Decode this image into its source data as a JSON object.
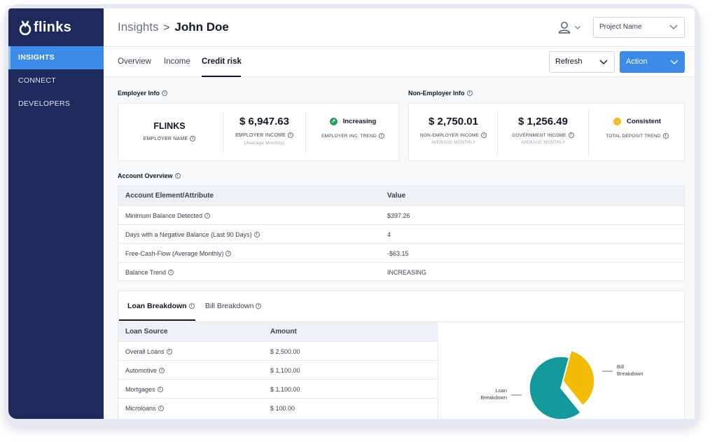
{
  "app": {
    "logo_text": "flinks"
  },
  "sidebar": {
    "items": [
      {
        "label": "INSIGHTS",
        "active": true
      },
      {
        "label": "CONNECT",
        "active": false
      },
      {
        "label": "DEVELOPERS",
        "active": false
      }
    ]
  },
  "header": {
    "breadcrumb_parent": "Insights",
    "breadcrumb_separator": ">",
    "breadcrumb_current": "John Doe",
    "project_select": "Project Name"
  },
  "tabs": [
    {
      "label": "Overview"
    },
    {
      "label": "Income"
    },
    {
      "label": "Credit risk",
      "active": true
    }
  ],
  "toolbar": {
    "refresh_label": "Refresh",
    "action_label": "Action"
  },
  "employer": {
    "section_title": "Employer Info",
    "name_value": "FLINKS",
    "name_label": "EMPLOYER NAME",
    "income_value": "$ 6,947.63",
    "income_label": "EMPLOYER INCOME",
    "income_sub": "(Average Monthly)",
    "trend_value": "Increasing",
    "trend_label": "EMPLOYER INC. TREND",
    "trend_color": "#22a35a"
  },
  "non_employer": {
    "section_title": "Non-Employer Info",
    "income_value": "$ 2,750.01",
    "income_label": "NON-EMPLOYER INCOME",
    "income_sub": "AVERAGE MONTHLY",
    "gov_value": "$ 1,256.49",
    "gov_label": "GOVERNMENT INCOME",
    "gov_sub": "AVERAGE MONTHLY",
    "trend_value": "Consistent",
    "trend_label": "TOTAL DEPOSIT TREND",
    "trend_color": "#f5b921"
  },
  "account_overview": {
    "section_title": "Account Overview",
    "col_attr": "Account Element/Attribute",
    "col_value": "Value",
    "rows": [
      {
        "attr": "Minimum Balance Detected",
        "value": "$397.26"
      },
      {
        "attr": "Days with a Negative Balance (Last 90 Days)",
        "value": "4"
      },
      {
        "attr": "Free-Cash-Flow (Average Monthly)",
        "value": "-$63.15"
      },
      {
        "attr": "Balance Trend",
        "value": "INCREASING"
      }
    ]
  },
  "loans": {
    "tab_loan": "Loan Breakdown",
    "tab_bill": "Bill Breakdown",
    "col_source": "Loan Source",
    "col_amount": "Amount",
    "rows": [
      {
        "source": "Overall Loans",
        "amount": "$ 2,500.00"
      },
      {
        "source": "Automotive",
        "amount": "$ 1,100.00"
      },
      {
        "source": "Mortgages",
        "amount": "$ 1,100.00"
      },
      {
        "source": "Microloans",
        "amount": "$ 100.00"
      }
    ]
  },
  "chart_data": {
    "type": "pie",
    "title": "",
    "labels": [
      "Bill Breakdown",
      "Loan Breakdown"
    ],
    "legend_lines": [
      [
        "Bill",
        "Breakdown"
      ],
      [
        "Loan",
        "Breakdown"
      ]
    ],
    "values": [
      35,
      65
    ],
    "colors": [
      "#f2bc06",
      "#11999e"
    ]
  },
  "colors": {
    "sidebar": "#1f2a5c",
    "accent": "#3d8be8"
  }
}
